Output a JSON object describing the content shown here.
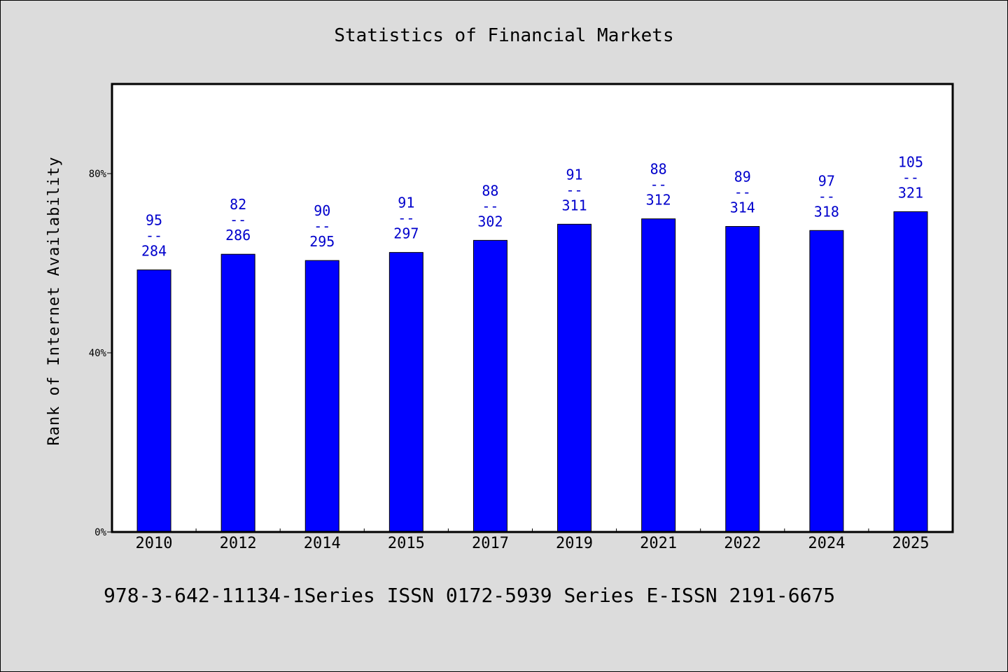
{
  "title": "Statistics of Financial Markets",
  "footer": "978-3-642-11134-1Series ISSN 0172-5939 Series E-ISSN 2191-6675",
  "chart_data": {
    "type": "bar",
    "title": "Statistics of Financial Markets",
    "xlabel": "",
    "ylabel": "Rank of Internet Availability",
    "ylim": [
      0,
      100
    ],
    "yticks": [
      0,
      40,
      80
    ],
    "ytick_labels": [
      "0%",
      "40%",
      "80%"
    ],
    "grid": false,
    "categories": [
      "2010",
      "2012",
      "2014",
      "2015",
      "2017",
      "2019",
      "2021",
      "2022",
      "2024",
      "2025"
    ],
    "values": [
      58.5,
      62.0,
      60.6,
      62.4,
      65.1,
      68.7,
      69.9,
      68.2,
      67.3,
      71.5
    ],
    "data_labels": [
      [
        "95",
        "--",
        "284"
      ],
      [
        "82",
        "--",
        "286"
      ],
      [
        "90",
        "--",
        "295"
      ],
      [
        "91",
        "--",
        "297"
      ],
      [
        "88",
        "--",
        "302"
      ],
      [
        "91",
        "--",
        "311"
      ],
      [
        "88",
        "--",
        "312"
      ],
      [
        "89",
        "--",
        "314"
      ],
      [
        "97",
        "--",
        "318"
      ],
      [
        "105",
        "--",
        "321"
      ]
    ],
    "colors": {
      "bar": "#0000ff",
      "label": "#0000cc",
      "axis": "#000000"
    }
  }
}
